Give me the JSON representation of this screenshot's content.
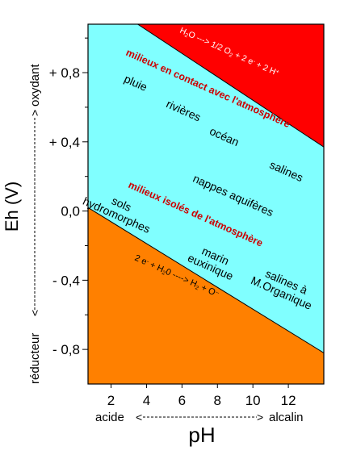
{
  "chart_data": {
    "type": "area",
    "title": "",
    "xlabel": "pH",
    "ylabel": "Eh (V)",
    "xlim": [
      0.7,
      14
    ],
    "ylim": [
      -1.0,
      1.08
    ],
    "x_ticks": [
      {
        "value": 2,
        "label": "2"
      },
      {
        "value": 4,
        "label": "4"
      },
      {
        "value": 6,
        "label": "6"
      },
      {
        "value": 8,
        "label": "8"
      },
      {
        "value": 10,
        "label": "10"
      },
      {
        "value": 12,
        "label": "12"
      }
    ],
    "y_ticks": [
      {
        "value": 0.8,
        "label": "+ 0,8"
      },
      {
        "value": 0.4,
        "label": "+ 0,4"
      },
      {
        "value": 0.0,
        "label": "0,0"
      },
      {
        "value": -0.4,
        "label": "- 0,4"
      },
      {
        "value": -0.8,
        "label": "- 0,8"
      }
    ],
    "y_minor_ticks": [
      1.0,
      0.6,
      0.2,
      -0.2,
      -0.6
    ],
    "x_axis_annotation": {
      "left": "acide",
      "right": "alcalin"
    },
    "y_axis_annotation": {
      "bottom": "réducteur",
      "top": "oxydant"
    },
    "boundaries": [
      {
        "name": "oxidation limit",
        "label": "H2O ---> 1/2 O2 + 2 e- + 2 H+",
        "x": [
          3.5,
          14
        ],
        "y": [
          1.08,
          0.37
        ]
      },
      {
        "name": "reduction limit",
        "label": "2 e- + H20 ----> H2 + O--",
        "x": [
          0.7,
          14
        ],
        "y": [
          0.02,
          -0.82
        ]
      }
    ],
    "regions": [
      {
        "name": "above oxidation limit",
        "color": "#ff0000"
      },
      {
        "name": "water stability field",
        "color": "#80ffff"
      },
      {
        "name": "below reduction limit",
        "color": "#ff8000"
      }
    ],
    "group_labels": [
      {
        "text": "milieux en contact avec l'atmosphère",
        "color": "#cc0000"
      },
      {
        "text": "milieux isolés de l'atmosphère",
        "color": "#cc0000"
      }
    ],
    "environments": [
      {
        "label": "pluie",
        "x": 3.3,
        "y": 0.72
      },
      {
        "label": "rivières",
        "x": 6.0,
        "y": 0.56
      },
      {
        "label": "océan",
        "x": 8.3,
        "y": 0.41
      },
      {
        "label": "salines",
        "x": 11.8,
        "y": 0.21
      },
      {
        "label": "nappes aquifères",
        "x": 8.8,
        "y": 0.07
      },
      {
        "label": "sols hydromorphes",
        "x": 2.5,
        "y": 0.02
      },
      {
        "label": "marin euxinique",
        "x": 7.8,
        "y": -0.28
      },
      {
        "label": "salines à M.Organique",
        "x": 11.8,
        "y": -0.43
      }
    ]
  }
}
